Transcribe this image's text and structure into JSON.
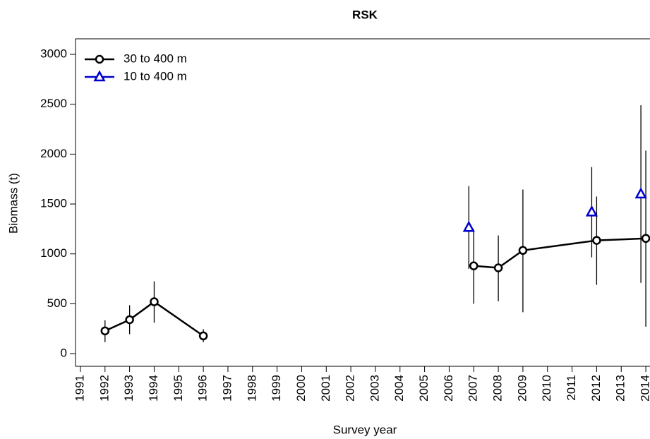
{
  "chart_data": {
    "type": "line",
    "title": "RSK",
    "x_label": "Survey year",
    "y_label": "Biomass (t)",
    "xlim": [
      1990.8,
      2014.4
    ],
    "xticks": [
      1991,
      1992,
      1993,
      1994,
      1995,
      1996,
      1997,
      1998,
      1999,
      2000,
      2001,
      2002,
      2003,
      2004,
      2005,
      2006,
      2007,
      2008,
      2009,
      2010,
      2011,
      2012,
      2013,
      2014
    ],
    "ylim": [
      -127,
      3156
    ],
    "yticks": [
      0,
      500,
      1000,
      1500,
      2000,
      2500,
      3000
    ],
    "legend": "top-left",
    "series": [
      {
        "name": "30 to 400 m",
        "color": "#000000",
        "marker": "circle",
        "x": [
          1992,
          1993,
          1994,
          1996,
          2000,
          2007,
          2008,
          2009,
          2012,
          2014
        ],
        "values": [
          228,
          340,
          520,
          178,
          null,
          880,
          860,
          1035,
          1135,
          1155
        ],
        "lower": [
          115,
          195,
          310,
          115,
          null,
          500,
          525,
          415,
          690,
          270
        ],
        "upper": [
          335,
          485,
          725,
          245,
          null,
          1245,
          1185,
          1645,
          1575,
          2035
        ]
      },
      {
        "name": "10 to 400 m",
        "color": "#0000cc",
        "marker": "triangle",
        "x": [
          2006.8,
          2011.8,
          2013.8
        ],
        "values": [
          1265,
          1420,
          1600
        ],
        "lower": [
          850,
          965,
          710
        ],
        "upper": [
          1680,
          1870,
          2490
        ]
      }
    ]
  }
}
